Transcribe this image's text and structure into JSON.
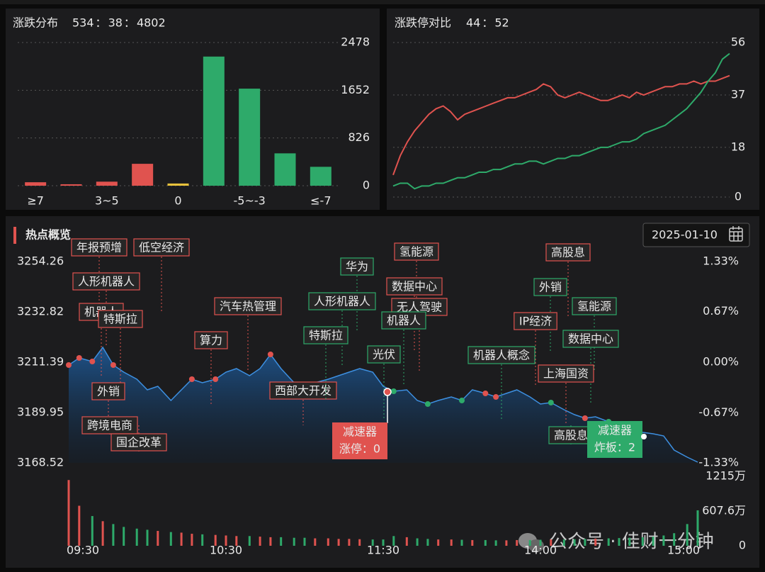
{
  "distribution": {
    "type": "bar",
    "title": "涨跌分布",
    "up": 534,
    "flat": 38,
    "down": 4802,
    "separator": "：",
    "categories": [
      "≥7",
      null,
      "3~5",
      null,
      "0",
      null,
      "-5~-3",
      null,
      "≤-7"
    ],
    "values": [
      60,
      25,
      70,
      379,
      38,
      2235,
      1680,
      560,
      327
    ],
    "colors": [
      "#e0534f",
      "#e0534f",
      "#e0534f",
      "#e0534f",
      "#e8c23c",
      "#2eaa6a",
      "#2eaa6a",
      "#2eaa6a",
      "#2eaa6a"
    ],
    "ylim": [
      0,
      2478
    ],
    "yticks": [
      0,
      826,
      1652,
      2478
    ],
    "grid": true
  },
  "limit_compare": {
    "type": "line",
    "title": "涨跌停对比",
    "up": 44,
    "down": 52,
    "separator": "：",
    "ylim": [
      0,
      56
    ],
    "yticks": [
      0,
      18,
      37,
      56
    ],
    "grid": true,
    "series": [
      {
        "color": "#e0534f",
        "values": [
          8,
          15,
          20,
          24,
          27,
          30,
          32,
          33,
          31,
          28,
          30,
          31,
          32,
          33,
          34,
          35,
          36,
          36,
          37,
          38,
          39,
          41,
          40,
          37,
          36,
          37,
          38,
          37,
          36,
          35,
          35,
          36,
          37,
          36,
          38,
          37,
          38,
          39,
          40,
          40,
          41,
          41,
          42,
          41,
          42,
          42,
          43,
          44
        ]
      },
      {
        "color": "#2eaa6a",
        "values": [
          4,
          5,
          5,
          3,
          4,
          4,
          5,
          5,
          6,
          7,
          7,
          8,
          9,
          9,
          10,
          10,
          11,
          12,
          12,
          13,
          13,
          12,
          13,
          14,
          14,
          15,
          15,
          16,
          17,
          18,
          18,
          19,
          20,
          20,
          21,
          23,
          24,
          25,
          26,
          28,
          30,
          32,
          35,
          38,
          42,
          45,
          50,
          52
        ]
      }
    ]
  },
  "hotspot": {
    "type": "line",
    "title": "热点概览",
    "date": "2025-01-10",
    "line_color": "#3d8fe0",
    "ylim": [
      3168.52,
      3254.26
    ],
    "yticks": [
      3168.52,
      3189.95,
      3211.39,
      3232.82,
      3254.26
    ],
    "y2lim": [
      -1.33,
      1.33
    ],
    "y2ticks": [
      {
        "value": -1.33,
        "label": "-1.33%"
      },
      {
        "value": -0.67,
        "label": "-0.67%"
      },
      {
        "value": 0,
        "label": "0.00%"
      },
      {
        "value": 0.67,
        "label": "0.67%"
      },
      {
        "value": 1.33,
        "label": "1.33%"
      }
    ],
    "xlim": [
      0,
      240
    ],
    "xticks": [
      {
        "value": 0,
        "label": "09:30"
      },
      {
        "value": 60,
        "label": "10:30"
      },
      {
        "value": 120,
        "label": "11:30"
      },
      {
        "value": 180,
        "label": "14:00"
      },
      {
        "value": 240,
        "label": "15:00"
      }
    ],
    "x": [
      0,
      4,
      9,
      13,
      17,
      21,
      26,
      30,
      34,
      39,
      43,
      47,
      51,
      56,
      60,
      64,
      69,
      73,
      77,
      81,
      86,
      90,
      94,
      99,
      103,
      107,
      111,
      116,
      120,
      124,
      129,
      133,
      137,
      141,
      146,
      150,
      154,
      159,
      163,
      167,
      171,
      176,
      180,
      184,
      189,
      193,
      197,
      201,
      206,
      210,
      214,
      219,
      223,
      227,
      231,
      236,
      240
    ],
    "values": [
      3210.18,
      3213.2,
      3211.69,
      3217.73,
      3210.18,
      3207.16,
      3204.14,
      3199.62,
      3201.13,
      3195.09,
      3199.62,
      3204.14,
      3202.64,
      3204.14,
      3207.16,
      3208.67,
      3205.65,
      3208.67,
      3214.71,
      3208.67,
      3202.64,
      3201.13,
      3202.64,
      3204.14,
      3205.65,
      3207.16,
      3208.67,
      3207.16,
      3201.13,
      3199.01,
      3199.62,
      3195.09,
      3193.58,
      3195.09,
      3196.6,
      3195.09,
      3199.62,
      3198.11,
      3196.6,
      3198.11,
      3199.62,
      3196.6,
      3193.58,
      3194.18,
      3191.16,
      3189.05,
      3187.54,
      3188.14,
      3186.03,
      3184.52,
      3183.01,
      3181.5,
      3180.9,
      3179.99,
      3173.95,
      3170.94,
      3168.82
    ],
    "volume": [
      1150,
      700,
      520,
      430,
      380,
      330,
      300,
      280,
      260,
      240,
      230,
      210,
      200,
      190,
      180,
      170,
      170,
      160,
      150,
      150,
      140,
      140,
      130,
      130,
      120,
      120,
      115,
      110,
      110,
      170,
      150,
      130,
      120,
      110,
      110,
      105,
      100,
      100,
      95,
      95,
      100,
      100,
      105,
      110,
      110,
      115,
      120,
      125,
      130,
      135,
      140,
      150,
      160,
      180,
      220,
      380,
      620
    ],
    "volume_ylim": [
      0,
      1215
    ],
    "volume_yticks": [
      0,
      {
        "value": 607.6,
        "label": "607.6万"
      },
      {
        "value": 1215,
        "label": "1215万"
      }
    ],
    "tags": [
      {
        "text": "年报预增",
        "color": "#e0534f"
      },
      {
        "text": "低空经济",
        "color": "#e0534f"
      },
      {
        "text": "人形机器人",
        "color": "#e0534f"
      },
      {
        "text": "机器人",
        "color": "#e0534f"
      },
      {
        "text": "特斯拉",
        "color": "#e0534f"
      },
      {
        "text": "汽车热管理",
        "color": "#e0534f"
      },
      {
        "text": "算力",
        "color": "#e0534f"
      },
      {
        "text": "外销",
        "color": "#e0534f"
      },
      {
        "text": "跨境电商",
        "color": "#e0534f"
      },
      {
        "text": "国企改革",
        "color": "#e0534f"
      },
      {
        "text": "西部大开发",
        "color": "#e0534f"
      },
      {
        "text": "华为",
        "color": "#2eaa6a"
      },
      {
        "text": "氢能源",
        "color": "#e0534f"
      },
      {
        "text": "数据中心",
        "color": "#e0534f"
      },
      {
        "text": "人形机器人",
        "color": "#2eaa6a"
      },
      {
        "text": "无人驾驶",
        "color": "#e0534f"
      },
      {
        "text": "机器人",
        "color": "#2eaa6a"
      },
      {
        "text": "特斯拉",
        "color": "#2eaa6a"
      },
      {
        "text": "光伏",
        "color": "#2eaa6a"
      },
      {
        "text": "机器人概念",
        "color": "#2eaa6a"
      },
      {
        "text": "高股息",
        "color": "#e0534f"
      },
      {
        "text": "外销",
        "color": "#2eaa6a"
      },
      {
        "text": "氢能源",
        "color": "#2eaa6a"
      },
      {
        "text": "IP经济",
        "color": "#e0534f"
      },
      {
        "text": "数据中心",
        "color": "#2eaa6a"
      },
      {
        "text": "上海国资",
        "color": "#e0534f"
      },
      {
        "text": "高股息",
        "color": "#2eaa6a"
      }
    ],
    "limit_up_callout": {
      "name": "减速器",
      "text": "涨停：0",
      "color": "#e0534f"
    },
    "broken_callout": {
      "name": "减速器",
      "text": "炸板：2",
      "color": "#2eaa6a"
    },
    "watermark": "公众号 · 佳财一分钟"
  }
}
